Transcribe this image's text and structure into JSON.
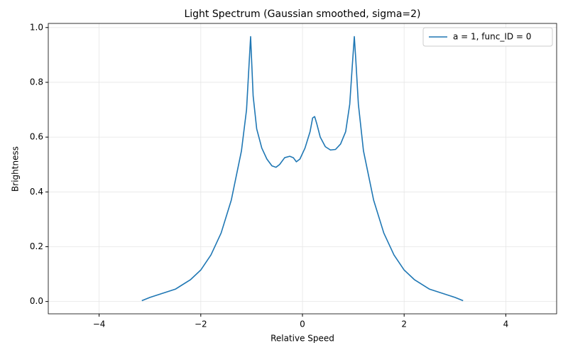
{
  "chart_data": {
    "type": "line",
    "title": "Light Spectrum (Gaussian smoothed, sigma=2)",
    "x_label": "Relative Speed",
    "y_label": "Brightness",
    "x": [
      -3.16,
      -3.0,
      -2.5,
      -2.2,
      -2.0,
      -1.8,
      -1.6,
      -1.4,
      -1.2,
      -1.1,
      -1.04,
      -1.02,
      -1.0,
      -0.97,
      -0.9,
      -0.8,
      -0.7,
      -0.6,
      -0.52,
      -0.45,
      -0.35,
      -0.25,
      -0.18,
      -0.12,
      -0.05,
      0.05,
      0.15,
      0.2,
      0.24,
      0.28,
      0.35,
      0.45,
      0.55,
      0.65,
      0.75,
      0.85,
      0.93,
      0.98,
      1.02,
      1.05,
      1.1,
      1.2,
      1.4,
      1.6,
      1.8,
      2.0,
      2.2,
      2.5,
      3.0,
      3.16
    ],
    "series": [
      {
        "name": "a = 1, func_ID = 0",
        "color": "#1f77b4",
        "values": [
          0.003,
          0.015,
          0.045,
          0.08,
          0.115,
          0.17,
          0.25,
          0.37,
          0.55,
          0.7,
          0.9,
          0.967,
          0.88,
          0.75,
          0.63,
          0.56,
          0.52,
          0.495,
          0.49,
          0.5,
          0.525,
          0.53,
          0.525,
          0.51,
          0.52,
          0.56,
          0.62,
          0.67,
          0.675,
          0.65,
          0.6,
          0.565,
          0.553,
          0.555,
          0.575,
          0.62,
          0.72,
          0.86,
          0.967,
          0.88,
          0.72,
          0.55,
          0.37,
          0.25,
          0.17,
          0.115,
          0.08,
          0.045,
          0.015,
          0.003
        ]
      }
    ],
    "xlim": [
      -5,
      5
    ],
    "ylim": [
      -0.045,
      1.015
    ],
    "xticks": [
      {
        "value": -4,
        "label": "−4"
      },
      {
        "value": -2,
        "label": "−2"
      },
      0,
      2,
      4
    ],
    "yticks": [
      {
        "value": 0,
        "label": "0.0"
      },
      0.2,
      0.4,
      0.6,
      0.8,
      {
        "value": 1,
        "label": "1.0"
      }
    ],
    "grid": true,
    "legend": "upper right"
  }
}
